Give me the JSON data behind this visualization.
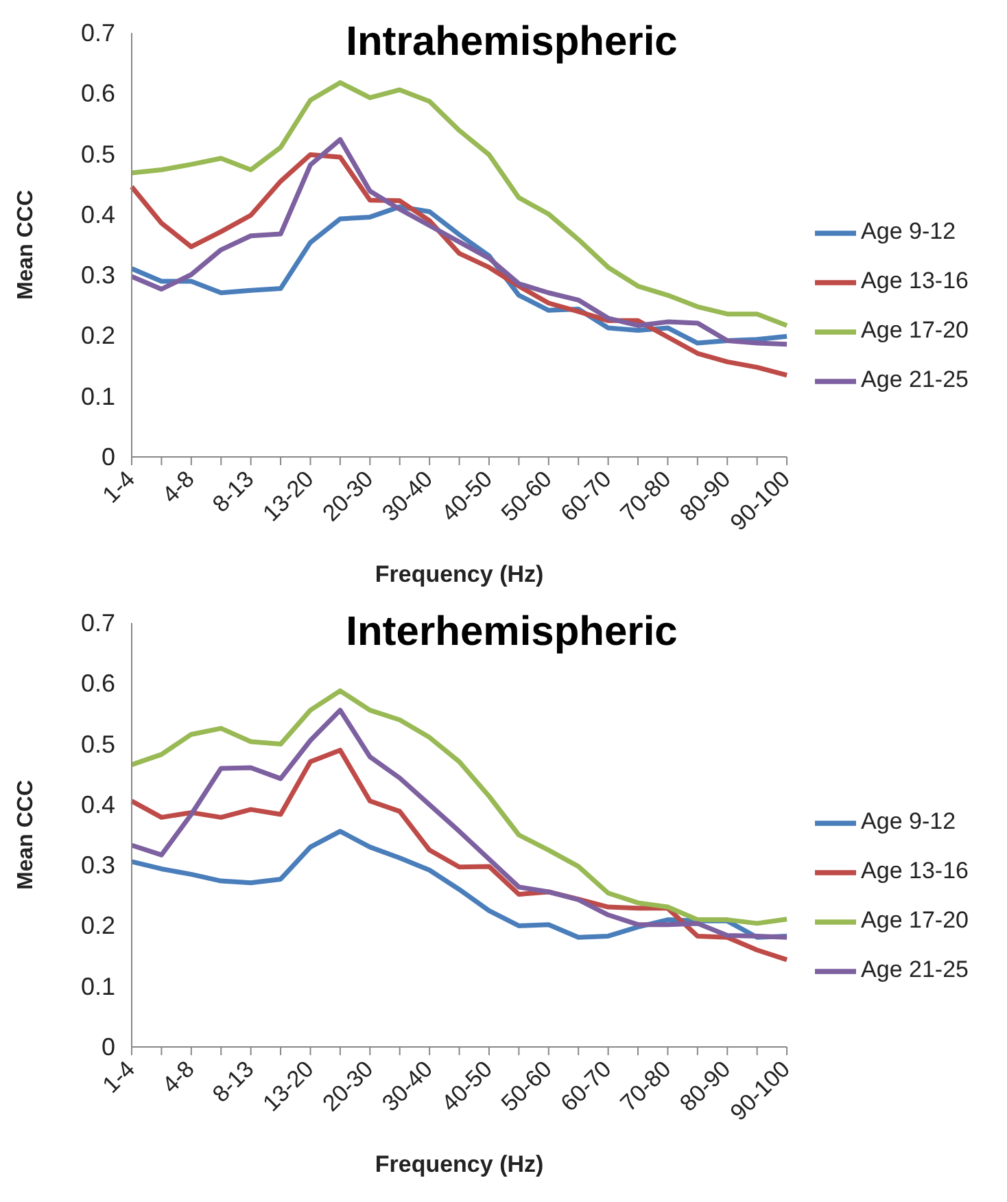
{
  "chart_data": [
    {
      "type": "line",
      "title": "Intrahemispheric",
      "xlabel": "Frequency (Hz)",
      "ylabel": "Mean CCC",
      "categories": [
        "1-4",
        null,
        "4-8",
        null,
        "8-13",
        null,
        "13-20",
        null,
        "20-30",
        null,
        "30-40",
        null,
        "40-50",
        null,
        "50-60",
        null,
        "60-70",
        null,
        "70-80",
        null,
        "80-90",
        null,
        "90-100"
      ],
      "series": [
        {
          "name": "Age 9-12",
          "color": "#4a7ebb",
          "values": [
            0.311,
            0.29,
            0.29,
            0.271,
            0.275,
            0.278,
            0.354,
            0.393,
            0.396,
            0.413,
            0.405,
            0.367,
            0.332,
            0.267,
            0.242,
            0.244,
            0.213,
            0.209,
            0.213,
            0.188,
            0.192,
            0.194,
            0.199
          ]
        },
        {
          "name": "Age 13-16",
          "color": "#be4b48",
          "values": [
            0.446,
            0.386,
            0.347,
            0.372,
            0.399,
            0.455,
            0.499,
            0.495,
            0.424,
            0.423,
            0.39,
            0.336,
            0.313,
            0.282,
            0.254,
            0.24,
            0.225,
            0.225,
            0.198,
            0.171,
            0.157,
            0.148,
            0.135
          ]
        },
        {
          "name": "Age 17-20",
          "color": "#98b954",
          "values": [
            0.469,
            0.474,
            0.483,
            0.493,
            0.474,
            0.511,
            0.589,
            0.618,
            0.593,
            0.606,
            0.587,
            0.539,
            0.499,
            0.428,
            0.401,
            0.359,
            0.313,
            0.282,
            0.267,
            0.248,
            0.236,
            0.236,
            0.217
          ]
        },
        {
          "name": "Age 21-25",
          "color": "#7d60a0",
          "values": [
            0.298,
            0.277,
            0.301,
            0.342,
            0.365,
            0.368,
            0.482,
            0.524,
            0.439,
            0.409,
            0.382,
            0.355,
            0.328,
            0.286,
            0.271,
            0.259,
            0.229,
            0.217,
            0.223,
            0.221,
            0.192,
            0.188,
            0.186
          ]
        }
      ],
      "ylim": [
        0,
        0.7
      ],
      "yticks": [
        0,
        0.1,
        0.2,
        0.3,
        0.4,
        0.5,
        0.6,
        0.7
      ],
      "legend": "right",
      "marker": "none",
      "line_style": "solid"
    },
    {
      "type": "line",
      "title": "Interhemispheric",
      "xlabel": "Frequency (Hz)",
      "ylabel": "Mean CCC",
      "categories": [
        "1-4",
        null,
        "4-8",
        null,
        "8-13",
        null,
        "13-20",
        null,
        "20-30",
        null,
        "30-40",
        null,
        "40-50",
        null,
        "50-60",
        null,
        "60-70",
        null,
        "70-80",
        null,
        "80-90",
        null,
        "90-100"
      ],
      "series": [
        {
          "name": "Age 9-12",
          "color": "#4a7ebb",
          "values": [
            0.306,
            0.294,
            0.285,
            0.274,
            0.271,
            0.277,
            0.33,
            0.356,
            0.33,
            0.312,
            0.292,
            0.26,
            0.225,
            0.2,
            0.202,
            0.181,
            0.183,
            0.198,
            0.21,
            0.208,
            0.208,
            0.181,
            0.183
          ]
        },
        {
          "name": "Age 13-16",
          "color": "#be4b48",
          "values": [
            0.406,
            0.379,
            0.387,
            0.379,
            0.392,
            0.384,
            0.471,
            0.49,
            0.406,
            0.389,
            0.325,
            0.297,
            0.298,
            0.252,
            0.256,
            0.244,
            0.231,
            0.229,
            0.229,
            0.183,
            0.181,
            0.16,
            0.144
          ]
        },
        {
          "name": "Age 17-20",
          "color": "#98b954",
          "values": [
            0.466,
            0.483,
            0.516,
            0.526,
            0.504,
            0.5,
            0.556,
            0.588,
            0.556,
            0.54,
            0.511,
            0.471,
            0.414,
            0.35,
            0.325,
            0.298,
            0.254,
            0.238,
            0.231,
            0.21,
            0.21,
            0.204,
            0.211
          ]
        },
        {
          "name": "Age 21-25",
          "color": "#7d60a0",
          "values": [
            0.333,
            0.317,
            0.384,
            0.46,
            0.461,
            0.443,
            0.506,
            0.556,
            0.479,
            0.444,
            0.4,
            0.356,
            0.31,
            0.264,
            0.256,
            0.243,
            0.218,
            0.202,
            0.202,
            0.204,
            0.184,
            0.183,
            0.181
          ]
        }
      ],
      "ylim": [
        0,
        0.7
      ],
      "yticks": [
        0,
        0.1,
        0.2,
        0.3,
        0.4,
        0.5,
        0.6,
        0.7
      ],
      "legend": "right",
      "marker": "none",
      "line_style": "solid"
    }
  ]
}
